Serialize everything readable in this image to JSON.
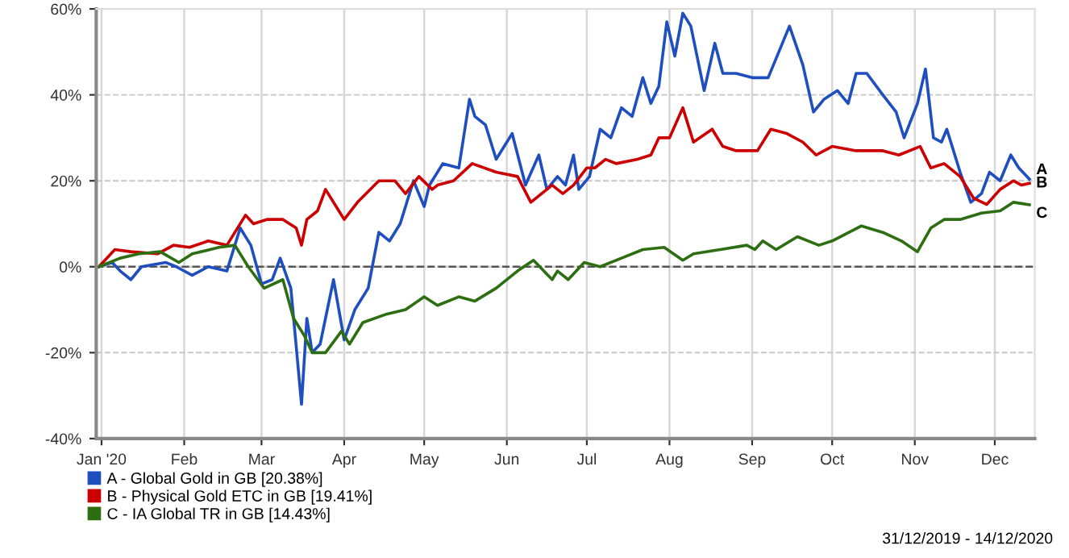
{
  "chart_data": {
    "type": "line",
    "xlim": [
      "2019-12-30",
      "2020-12-16"
    ],
    "xticks": [
      {
        "value": "2020-01-01",
        "label": "Jan '20"
      },
      {
        "value": "2020-02-01",
        "label": "Feb"
      },
      {
        "value": "2020-03-01",
        "label": "Mar"
      },
      {
        "value": "2020-04-01",
        "label": "Apr"
      },
      {
        "value": "2020-05-01",
        "label": "May"
      },
      {
        "value": "2020-06-01",
        "label": "Jun"
      },
      {
        "value": "2020-07-01",
        "label": "Jul"
      },
      {
        "value": "2020-08-01",
        "label": "Aug"
      },
      {
        "value": "2020-09-01",
        "label": "Sep"
      },
      {
        "value": "2020-10-01",
        "label": "Oct"
      },
      {
        "value": "2020-11-01",
        "label": "Nov"
      },
      {
        "value": "2020-12-01",
        "label": "Dec"
      }
    ],
    "ylim": [
      -40,
      60
    ],
    "yticks": [
      {
        "value": -40,
        "label": "-40%"
      },
      {
        "value": -20,
        "label": "-20%"
      },
      {
        "value": 0,
        "label": "0%"
      },
      {
        "value": 20,
        "label": "20%"
      },
      {
        "value": 40,
        "label": "40%"
      },
      {
        "value": 60,
        "label": "60%"
      }
    ],
    "grid": true,
    "legend": "bottom",
    "marker": "none",
    "line_style": "solid",
    "ref_lines": [
      {
        "axis": "y",
        "value": 0,
        "color": "#555555",
        "line_style": "dashed"
      }
    ],
    "series": [
      {
        "name": "A - Global Gold in GB [20.38%]",
        "color": "#1f4fbf",
        "x": [
          "2019-12-31",
          "2020-01-05",
          "2020-01-08",
          "2020-01-12",
          "2020-01-16",
          "2020-01-25",
          "2020-01-29",
          "2020-02-04",
          "2020-02-10",
          "2020-02-17",
          "2020-02-22",
          "2020-02-26",
          "2020-03-01",
          "2020-03-05",
          "2020-03-08",
          "2020-03-12",
          "2020-03-16",
          "2020-03-18",
          "2020-03-20",
          "2020-03-23",
          "2020-03-25",
          "2020-03-28",
          "2020-04-01",
          "2020-04-05",
          "2020-04-10",
          "2020-04-14",
          "2020-04-18",
          "2020-04-22",
          "2020-04-27",
          "2020-05-01",
          "2020-05-03",
          "2020-05-08",
          "2020-05-14",
          "2020-05-18",
          "2020-05-20",
          "2020-05-24",
          "2020-05-28",
          "2020-06-03",
          "2020-06-08",
          "2020-06-13",
          "2020-06-16",
          "2020-06-20",
          "2020-06-23",
          "2020-06-26",
          "2020-06-28",
          "2020-07-02",
          "2020-07-06",
          "2020-07-10",
          "2020-07-14",
          "2020-07-18",
          "2020-07-22",
          "2020-07-25",
          "2020-07-28",
          "2020-07-31",
          "2020-08-03",
          "2020-08-06",
          "2020-08-09",
          "2020-08-14",
          "2020-08-18",
          "2020-08-21",
          "2020-08-26",
          "2020-09-01",
          "2020-09-07",
          "2020-09-11",
          "2020-09-15",
          "2020-09-20",
          "2020-09-24",
          "2020-09-28",
          "2020-10-03",
          "2020-10-07",
          "2020-10-10",
          "2020-10-14",
          "2020-10-20",
          "2020-10-25",
          "2020-10-28",
          "2020-11-02",
          "2020-11-05",
          "2020-11-08",
          "2020-11-11",
          "2020-11-13",
          "2020-11-18",
          "2020-11-22",
          "2020-11-26",
          "2020-11-29",
          "2020-12-03",
          "2020-12-07",
          "2020-12-10",
          "2020-12-14"
        ],
        "values": [
          0,
          1,
          -1,
          -3,
          0,
          1,
          0,
          -2,
          0,
          -1,
          9,
          5,
          -4,
          -3,
          2,
          -5,
          -32,
          -12,
          -20,
          -18,
          -12,
          -3,
          -17,
          -10,
          -5,
          8,
          6,
          10,
          20,
          14,
          19,
          24,
          23,
          39,
          35,
          33,
          25,
          31,
          19,
          26,
          18,
          21,
          19,
          26,
          18,
          21,
          32,
          30,
          37,
          35,
          44,
          38,
          42,
          57,
          49,
          59,
          56,
          41,
          52,
          45,
          45,
          44,
          44,
          50,
          56,
          47,
          36,
          39,
          41,
          38,
          45,
          45,
          40,
          36,
          30,
          38,
          46,
          30,
          29,
          32,
          22,
          15,
          17,
          22,
          20,
          26,
          23,
          20.38
        ]
      },
      {
        "name": "B - Physical Gold ETC in GB [19.41%]",
        "color": "#cc0000",
        "x": [
          "2019-12-31",
          "2020-01-06",
          "2020-01-12",
          "2020-01-22",
          "2020-01-28",
          "2020-02-03",
          "2020-02-10",
          "2020-02-17",
          "2020-02-24",
          "2020-02-27",
          "2020-03-03",
          "2020-03-09",
          "2020-03-14",
          "2020-03-16",
          "2020-03-18",
          "2020-03-22",
          "2020-03-25",
          "2020-03-30",
          "2020-04-01",
          "2020-04-06",
          "2020-04-14",
          "2020-04-20",
          "2020-04-24",
          "2020-04-29",
          "2020-05-04",
          "2020-05-06",
          "2020-05-12",
          "2020-05-19",
          "2020-05-28",
          "2020-06-05",
          "2020-06-10",
          "2020-06-18",
          "2020-06-22",
          "2020-06-26",
          "2020-07-01",
          "2020-07-04",
          "2020-07-08",
          "2020-07-12",
          "2020-07-20",
          "2020-07-25",
          "2020-07-28",
          "2020-08-01",
          "2020-08-06",
          "2020-08-10",
          "2020-08-17",
          "2020-08-21",
          "2020-08-26",
          "2020-09-03",
          "2020-09-08",
          "2020-09-14",
          "2020-09-20",
          "2020-09-25",
          "2020-10-01",
          "2020-10-10",
          "2020-10-20",
          "2020-10-26",
          "2020-11-03",
          "2020-11-07",
          "2020-11-12",
          "2020-11-18",
          "2020-11-23",
          "2020-11-28",
          "2020-12-03",
          "2020-12-08",
          "2020-12-11",
          "2020-12-14"
        ],
        "values": [
          0,
          4,
          3.5,
          3,
          5,
          4.5,
          6,
          5,
          12,
          10,
          11,
          11,
          9,
          5,
          11,
          13,
          18,
          13,
          11,
          15,
          20,
          20,
          17,
          21,
          18,
          19,
          20,
          24,
          22,
          21,
          15,
          19,
          17,
          19,
          23,
          23,
          25,
          24,
          25,
          26,
          30,
          30,
          37,
          29,
          32,
          28,
          27,
          27,
          32,
          31,
          29,
          26,
          28,
          27,
          27,
          26,
          28,
          23,
          24,
          21,
          16,
          14.5,
          18,
          20,
          19,
          19.41
        ]
      },
      {
        "name": "C - IA Global TR in GB [14.43%]",
        "color": "#2e6e12",
        "x": [
          "2019-12-31",
          "2020-01-08",
          "2020-01-15",
          "2020-01-23",
          "2020-01-30",
          "2020-02-04",
          "2020-02-14",
          "2020-02-20",
          "2020-02-25",
          "2020-03-02",
          "2020-03-09",
          "2020-03-13",
          "2020-03-17",
          "2020-03-20",
          "2020-03-25",
          "2020-03-31",
          "2020-04-03",
          "2020-04-08",
          "2020-04-17",
          "2020-04-24",
          "2020-05-01",
          "2020-05-06",
          "2020-05-14",
          "2020-05-20",
          "2020-05-28",
          "2020-06-05",
          "2020-06-11",
          "2020-06-18",
          "2020-06-20",
          "2020-06-22",
          "2020-06-24",
          "2020-06-30",
          "2020-07-06",
          "2020-07-14",
          "2020-07-22",
          "2020-07-30",
          "2020-08-06",
          "2020-08-10",
          "2020-08-20",
          "2020-08-30",
          "2020-09-02",
          "2020-09-05",
          "2020-09-10",
          "2020-09-18",
          "2020-09-26",
          "2020-10-01",
          "2020-10-12",
          "2020-10-20",
          "2020-10-27",
          "2020-11-02",
          "2020-11-07",
          "2020-11-12",
          "2020-11-18",
          "2020-11-26",
          "2020-12-03",
          "2020-12-08",
          "2020-12-14"
        ],
        "values": [
          0,
          2,
          3,
          3.5,
          1,
          3,
          4.5,
          5,
          0,
          -5,
          -3,
          -12,
          -16,
          -20,
          -20,
          -15,
          -18,
          -13,
          -11,
          -10,
          -7,
          -9,
          -7,
          -8,
          -5,
          -1,
          1.5,
          -3,
          -1,
          -2,
          -3,
          1,
          0,
          2,
          4,
          4.5,
          1.5,
          3,
          4,
          5,
          4,
          6,
          4,
          7,
          5,
          6,
          9.5,
          8,
          6,
          3.5,
          9,
          11,
          11,
          12.5,
          13,
          15,
          14.43
        ]
      }
    ],
    "annotations": [
      {
        "text": "A",
        "x": "2020-12-14",
        "y": 20.38
      },
      {
        "text": "B",
        "x": "2020-12-14",
        "y": 19.41
      },
      {
        "text": "C",
        "x": "2020-12-14",
        "y": 14.43
      },
      "31/12/2019 - 14/12/2020"
    ]
  }
}
